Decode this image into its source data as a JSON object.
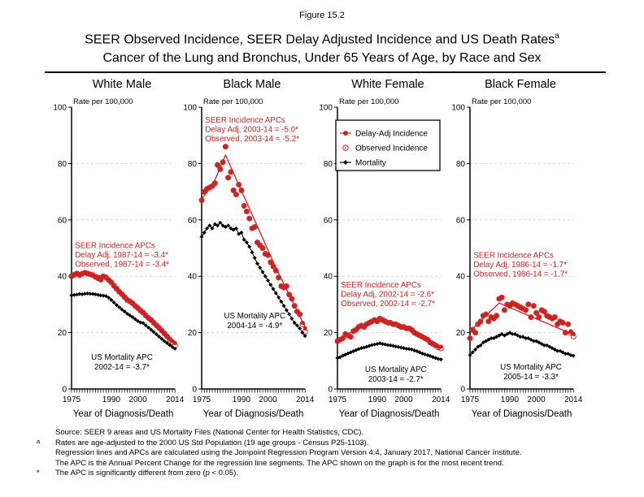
{
  "figure_label": "Figure 15.2",
  "title_line1": "SEER Observed Incidence, SEER Delay Adjusted Incidence and US Death Rates",
  "title_superscript": "a",
  "title_line2": "Cancer of the Lung and Bronchus, Under 65 Years of Age, by Race and Sex",
  "colors": {
    "incidence_red": "#CC2222",
    "mortality_black": "#000000",
    "grid_gray": "#D6D6D6"
  },
  "legend": {
    "items": [
      {
        "label": "Delay-Adj Incidence",
        "marker": "red-filled-circle-line"
      },
      {
        "label": "Observed Incidence",
        "marker": "red-open-circle"
      },
      {
        "label": "Mortality",
        "marker": "black-diamond-line"
      }
    ]
  },
  "axis": {
    "y_label": "Rate per 100,000",
    "y_ticks": [
      0,
      20,
      40,
      60,
      80,
      100
    ],
    "y_range": [
      0,
      100
    ],
    "gridlines_at": [
      20,
      40,
      60,
      80
    ],
    "x_label": "Year of Diagnosis/Death",
    "x_tick_labels": [
      1975,
      1990,
      2000,
      2014
    ],
    "x_range": [
      1975,
      2014
    ]
  },
  "footnotes": [
    {
      "marker": "",
      "text": "Source: SEER 9 areas and US Mortality Files (National Center for Health Statistics, CDC)."
    },
    {
      "marker": "a",
      "text": "Rates are age-adjusted to the 2000 US Std Population (19 age groups - Census P25-1103)."
    },
    {
      "marker": "",
      "text": "Regression lines and APCs are calculated using the Joinpoint Regression Program Version 4.4, January 2017, National Cancer Institute."
    },
    {
      "marker": "",
      "text": "The APC is the Annual Percent Change for the regression line segments. The APC shown on the graph is for the most recent trend."
    },
    {
      "marker": "*",
      "text": "The APC is significantly different from zero (p < 0.05)."
    }
  ],
  "chart_data": {
    "type": "line",
    "x_range": [
      1975,
      2014
    ],
    "panels": [
      {
        "title": "White Male",
        "incidence_annotation": [
          "SEER Incidence APCs",
          "Delay Adj, 1987-14 = -3.4*",
          "Observed, 1987-14 = -3.4*"
        ],
        "incidence_annotation_pos": {
          "year": 1976.3,
          "rate": 50
        },
        "mortality_annotation": [
          "US Mortality APC",
          "2002-14 = -3.7*"
        ],
        "mortality_annotation_pos": {
          "year": 1994,
          "rate": 10.4
        },
        "incidence_trend": [
          [
            1975,
            39.9
          ],
          [
            1980,
            41.1
          ],
          [
            1987,
            40.0
          ],
          [
            1991,
            37.2
          ],
          [
            2014,
            16.2
          ]
        ],
        "series": {
          "delay_adj": [
            40.0,
            40.5,
            41.0,
            40.4,
            40.9,
            41.3,
            41.0,
            40.7,
            40.4,
            39.8,
            39.3,
            38.8,
            40.0,
            39.6,
            38.7,
            37.8,
            36.6,
            35.6,
            34.5,
            33.6,
            32.6,
            31.6,
            31.1,
            30.4,
            29.5,
            28.7,
            27.8,
            27.1,
            26.1,
            25.2,
            24.5,
            23.5,
            22.6,
            21.7,
            20.7,
            19.7,
            18.7,
            17.8,
            17.0,
            16.3
          ],
          "observed": [
            40.0,
            40.5,
            41.0,
            40.4,
            40.9,
            41.3,
            41.0,
            40.7,
            40.4,
            39.8,
            39.3,
            38.8,
            40.0,
            39.6,
            38.7,
            37.8,
            36.6,
            35.6,
            34.5,
            33.6,
            32.6,
            31.6,
            31.1,
            30.4,
            29.5,
            28.7,
            27.8,
            27.1,
            26.1,
            25.2,
            24.5,
            23.5,
            22.6,
            21.7,
            20.7,
            19.7,
            18.7,
            17.5,
            16.6,
            15.4
          ],
          "mortality": [
            33.2,
            33.4,
            33.5,
            33.7,
            33.6,
            33.8,
            33.9,
            33.8,
            33.7,
            33.6,
            33.4,
            33.2,
            33.1,
            33.0,
            32.4,
            31.6,
            30.7,
            29.8,
            29.0,
            28.2,
            27.5,
            26.7,
            26.1,
            25.5,
            24.8,
            24.1,
            23.6,
            23.4,
            22.6,
            21.8,
            21.0,
            20.2,
            19.4,
            18.6,
            17.8,
            17.0,
            16.3,
            15.6,
            14.9,
            14.3
          ]
        }
      },
      {
        "title": "Black Male",
        "incidence_annotation": [
          "SEER Incidence APCs",
          "Delay Adj, 2003-14 = -5.0*",
          "Observed, 2003-14 = -5.2*"
        ],
        "incidence_annotation_pos": {
          "year": 1976.3,
          "rate": 94.5
        },
        "mortality_annotation": [
          "US Mortality APC",
          "2004-14 = -4.9*"
        ],
        "mortality_annotation_pos": {
          "year": 1995,
          "rate": 25.1
        },
        "incidence_trend": [
          [
            1975,
            67.5
          ],
          [
            1979,
            72.0
          ],
          [
            1984,
            83.0
          ],
          [
            2003,
            43.0
          ],
          [
            2014,
            22.0
          ]
        ],
        "series": {
          "delay_adj": [
            67.0,
            70.0,
            71.0,
            71.5,
            72.0,
            73.0,
            79.5,
            78.0,
            80.5,
            86.0,
            75.0,
            77.0,
            70.5,
            69.0,
            72.5,
            70.5,
            65.0,
            63.0,
            60.5,
            57.0,
            57.5,
            52.0,
            51.0,
            50.0,
            48.0,
            47.5,
            45.0,
            43.5,
            42.0,
            39.5,
            36.5,
            36.0,
            36.5,
            33.5,
            32.0,
            29.5,
            27.5,
            26.5,
            23.5,
            21.5
          ],
          "observed": [
            67.0,
            70.0,
            71.0,
            71.5,
            72.0,
            73.0,
            79.5,
            78.0,
            80.5,
            86.0,
            75.0,
            77.0,
            70.5,
            69.0,
            72.5,
            70.5,
            65.0,
            63.0,
            60.5,
            57.0,
            57.5,
            52.0,
            51.0,
            50.0,
            48.0,
            47.5,
            45.0,
            43.5,
            42.0,
            39.5,
            36.5,
            36.0,
            36.5,
            33.5,
            32.0,
            29.5,
            27.5,
            26.5,
            23.0,
            20.3
          ],
          "mortality": [
            54.0,
            55.5,
            57.0,
            58.0,
            57.0,
            58.5,
            58.0,
            59.0,
            58.0,
            57.5,
            58.0,
            57.0,
            56.5,
            57.0,
            55.0,
            55.5,
            53.0,
            52.0,
            50.5,
            48.5,
            46.5,
            44.5,
            43.0,
            41.5,
            40.0,
            38.5,
            37.0,
            35.5,
            34.0,
            32.5,
            31.0,
            29.5,
            28.0,
            26.5,
            25.0,
            23.5,
            22.5,
            21.5,
            20.0,
            18.8
          ]
        }
      },
      {
        "title": "White Female",
        "has_legend": true,
        "incidence_annotation": [
          "SEER Incidence APCs",
          "Delay Adj, 2002-14 = -2.6*",
          "Observed, 2002-14 = -2.7*"
        ],
        "incidence_annotation_pos": {
          "year": 1976.3,
          "rate": 36
        },
        "mortality_annotation": [
          "US Mortality APC",
          "2003-14 = -2.7*"
        ],
        "mortality_annotation_pos": {
          "year": 1997,
          "rate": 6.1
        },
        "incidence_trend": [
          [
            1975,
            17.2
          ],
          [
            1982,
            21.3
          ],
          [
            1991,
            24.6
          ],
          [
            2002,
            21.8
          ],
          [
            2014,
            15.2
          ]
        ],
        "series": {
          "delay_adj": [
            17.0,
            17.5,
            18.0,
            19.5,
            19.0,
            18.5,
            20.5,
            21.0,
            22.0,
            22.5,
            22.0,
            23.0,
            23.5,
            24.0,
            24.5,
            24.0,
            25.0,
            24.5,
            24.0,
            23.5,
            23.5,
            23.0,
            23.0,
            22.5,
            22.0,
            22.0,
            21.5,
            21.5,
            21.0,
            20.0,
            19.5,
            19.0,
            18.5,
            18.0,
            17.5,
            16.5,
            16.0,
            15.5,
            15.0,
            15.0
          ],
          "observed": [
            17.0,
            17.5,
            18.0,
            19.5,
            19.0,
            18.5,
            20.5,
            21.0,
            22.0,
            22.5,
            22.0,
            23.0,
            23.5,
            24.0,
            24.5,
            24.0,
            25.0,
            24.5,
            24.0,
            23.5,
            23.5,
            23.0,
            23.0,
            22.5,
            22.0,
            22.0,
            21.5,
            21.5,
            21.0,
            20.0,
            19.5,
            19.0,
            18.5,
            18.0,
            17.5,
            16.5,
            16.0,
            15.5,
            14.8,
            14.4
          ],
          "mortality": [
            11.0,
            11.3,
            11.8,
            12.2,
            12.6,
            13.0,
            13.4,
            13.8,
            14.2,
            14.5,
            14.7,
            15.0,
            15.3,
            15.6,
            15.8,
            16.0,
            16.2,
            16.0,
            15.8,
            15.6,
            15.5,
            15.3,
            15.1,
            14.9,
            14.7,
            14.5,
            14.3,
            14.2,
            14.0,
            13.7,
            13.4,
            13.0,
            12.6,
            12.3,
            12.0,
            11.7,
            11.3,
            11.0,
            10.7,
            10.5
          ]
        }
      },
      {
        "title": "Black Female",
        "incidence_annotation": [
          "SEER Incidence APCs",
          "Delay Adj, 1986-14 = -1.7*",
          "Observed, 1986-14 = -1.7*"
        ],
        "incidence_annotation_pos": {
          "year": 1976.3,
          "rate": 46.5
        },
        "mortality_annotation": [
          "US Mortality APC",
          "2005-14 = -3.3*"
        ],
        "mortality_annotation_pos": {
          "year": 1998,
          "rate": 6.9
        },
        "incidence_trend": [
          [
            1975,
            20.5
          ],
          [
            1986,
            30.5
          ],
          [
            2014,
            19.3
          ]
        ],
        "series": {
          "delay_adj": [
            18.0,
            21.0,
            20.0,
            23.0,
            24.0,
            26.0,
            26.5,
            24.0,
            25.5,
            25.0,
            26.0,
            32.0,
            32.5,
            28.0,
            30.0,
            29.5,
            30.5,
            30.0,
            29.5,
            29.0,
            28.5,
            28.0,
            30.0,
            25.5,
            29.5,
            27.0,
            25.5,
            28.0,
            27.5,
            26.0,
            25.5,
            25.0,
            25.5,
            23.0,
            24.0,
            23.5,
            20.0,
            23.0,
            20.5,
            19.5
          ],
          "observed": [
            18.0,
            21.0,
            20.0,
            23.0,
            24.0,
            26.0,
            26.5,
            24.0,
            25.5,
            25.0,
            26.0,
            32.0,
            32.5,
            28.0,
            30.0,
            29.5,
            30.5,
            30.0,
            29.5,
            29.0,
            28.5,
            28.0,
            30.0,
            25.5,
            29.5,
            27.0,
            25.5,
            28.0,
            27.5,
            26.0,
            25.5,
            25.0,
            25.5,
            23.0,
            24.0,
            23.5,
            20.0,
            23.0,
            20.0,
            18.6
          ],
          "mortality": [
            12.0,
            13.0,
            14.0,
            15.0,
            15.5,
            16.5,
            17.0,
            17.5,
            18.0,
            18.0,
            18.5,
            19.0,
            19.5,
            19.0,
            19.5,
            20.0,
            19.5,
            19.5,
            19.0,
            18.5,
            18.5,
            18.0,
            18.0,
            17.5,
            17.0,
            17.0,
            16.5,
            16.0,
            15.5,
            15.5,
            15.0,
            14.5,
            14.0,
            13.5,
            13.5,
            13.0,
            12.5,
            12.5,
            12.0,
            11.8
          ]
        }
      }
    ]
  }
}
